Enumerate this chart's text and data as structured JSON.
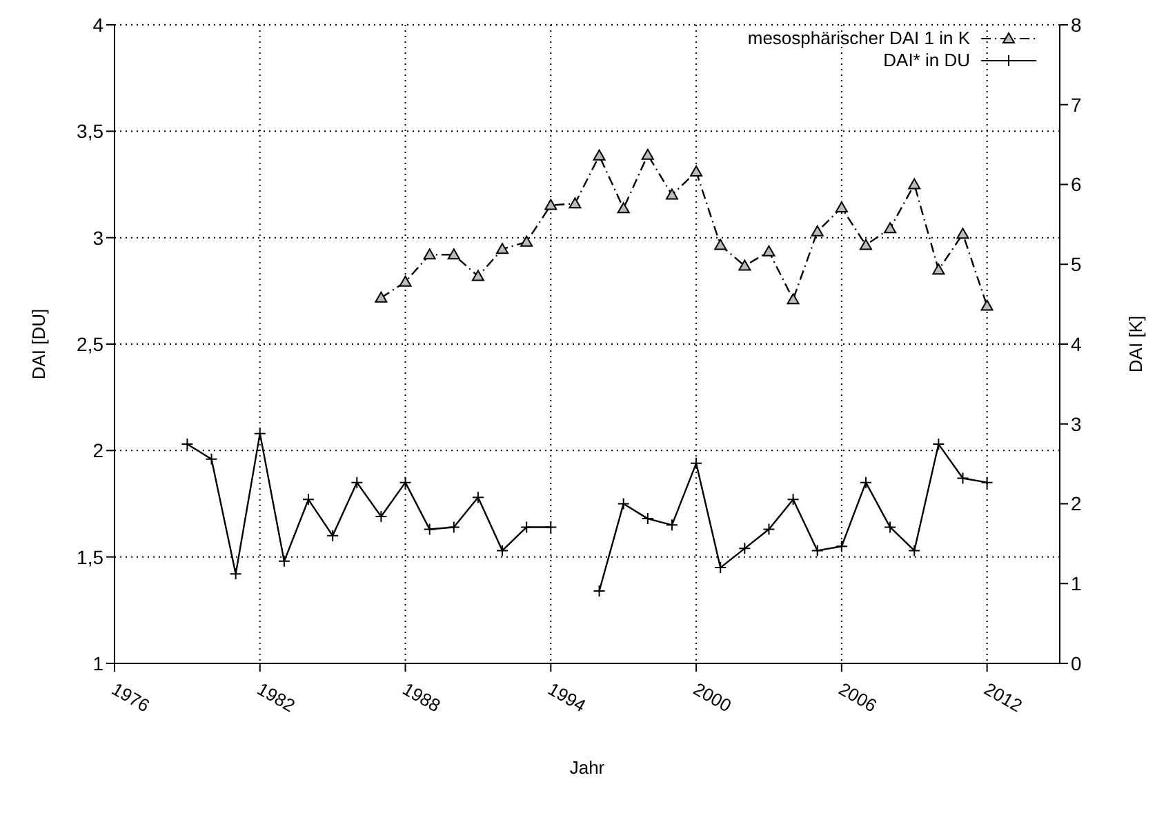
{
  "chart_data": {
    "type": "line",
    "xlabel": "Jahr",
    "ylabel": "DAI [DU]",
    "y2label": "DAI [K]",
    "xlim": [
      1976,
      2015
    ],
    "xticks": [
      1976,
      1982,
      1988,
      1994,
      2000,
      2006,
      2012
    ],
    "ylim": [
      1,
      4
    ],
    "yticks": [
      1,
      {
        "value": 1.5,
        "label": "1,5"
      },
      2,
      {
        "value": 2.5,
        "label": "2,5"
      },
      3,
      {
        "value": 3.5,
        "label": "3,5"
      },
      4
    ],
    "y2lim": [
      0,
      8
    ],
    "y2ticks": [
      0,
      1,
      2,
      3,
      4,
      5,
      6,
      7,
      8
    ],
    "grid": true,
    "legend": "top right",
    "series": [
      {
        "name": "mesosphärischer DAI 1 in K",
        "color": "#000000",
        "axis": "y2",
        "marker": "triangle",
        "line_style": "dashed",
        "x": [
          1987,
          1988,
          1989,
          1990,
          1991,
          1992,
          1993,
          1994,
          1995,
          1996,
          1997,
          1998,
          1999,
          2000,
          2001,
          2002,
          2003,
          2004,
          2005,
          2006,
          2007,
          2008,
          2009,
          2010,
          2011,
          2012
        ],
        "values": [
          4.58,
          4.78,
          5.12,
          5.12,
          4.85,
          5.19,
          5.28,
          5.74,
          5.76,
          6.36,
          5.7,
          6.37,
          5.87,
          6.16,
          5.24,
          4.98,
          5.16,
          4.56,
          5.41,
          5.71,
          5.24,
          5.45,
          6.0,
          4.93,
          5.38,
          4.48
        ]
      },
      {
        "name": "DAI* in DU",
        "color": "#000000",
        "marker": "cross",
        "line_style": "solid",
        "x": [
          1979,
          1980,
          1981,
          1982,
          1983,
          1984,
          1985,
          1986,
          1987,
          1988,
          1989,
          1990,
          1991,
          1992,
          1993,
          1994,
          1995,
          1996,
          1997,
          1998,
          1999,
          2000,
          2001,
          2002,
          2003,
          2004,
          2005,
          2006,
          2007,
          2008,
          2009,
          2010,
          2011,
          2012
        ],
        "values": [
          2.03,
          1.96,
          1.42,
          2.08,
          1.48,
          1.77,
          1.6,
          1.85,
          1.69,
          1.85,
          1.63,
          1.64,
          1.78,
          1.53,
          1.64,
          1.64,
          null,
          1.34,
          1.75,
          1.68,
          1.65,
          1.94,
          1.45,
          1.54,
          1.63,
          1.77,
          1.53,
          1.55,
          1.85,
          1.64,
          1.53,
          2.03,
          1.87,
          1.85
        ]
      }
    ]
  }
}
